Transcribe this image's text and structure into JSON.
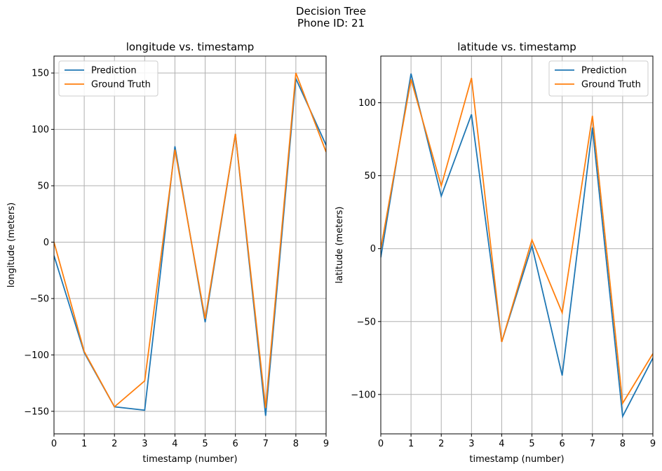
{
  "figure": {
    "title_line1": "Decision Tree",
    "title_line2": "Phone ID: 21"
  },
  "colors": {
    "prediction": "#1f77b4",
    "ground_truth": "#ff7f0e",
    "grid": "#b0b0b0",
    "axis": "#000000"
  },
  "chart_data": [
    {
      "type": "line",
      "title": "longitude vs. timestamp",
      "xlabel": "timestamp (number)",
      "ylabel": "longitude (meters)",
      "xlim": [
        0,
        9
      ],
      "ylim": [
        -170,
        165
      ],
      "xticks": [
        0,
        1,
        2,
        3,
        4,
        5,
        6,
        7,
        8,
        9
      ],
      "yticks": [
        -150,
        -100,
        -50,
        0,
        50,
        100,
        150
      ],
      "grid": true,
      "legend_position": "upper left",
      "x": [
        0,
        1,
        2,
        3,
        4,
        5,
        6,
        7,
        8,
        9
      ],
      "series": [
        {
          "name": "Prediction",
          "color": "#1f77b4",
          "values": [
            -12,
            -98,
            -146,
            -149,
            85,
            -71,
            96,
            -154,
            145,
            86
          ]
        },
        {
          "name": "Ground Truth",
          "color": "#ff7f0e",
          "values": [
            0,
            -97,
            -146,
            -123,
            82,
            -68,
            96,
            -147,
            150,
            80
          ]
        }
      ]
    },
    {
      "type": "line",
      "title": "latitude vs. timestamp",
      "xlabel": "timestamp (number)",
      "ylabel": "latitude (meters)",
      "xlim": [
        0,
        9
      ],
      "ylim": [
        -127,
        132
      ],
      "xticks": [
        0,
        1,
        2,
        3,
        4,
        5,
        6,
        7,
        8,
        9
      ],
      "yticks": [
        -100,
        -50,
        0,
        50,
        100
      ],
      "grid": true,
      "legend_position": "upper right",
      "x": [
        0,
        1,
        2,
        3,
        4,
        5,
        6,
        7,
        8,
        9
      ],
      "series": [
        {
          "name": "Prediction",
          "color": "#1f77b4",
          "values": [
            -6,
            120,
            36,
            92,
            -64,
            2,
            -87,
            83,
            -115,
            -75
          ]
        },
        {
          "name": "Ground Truth",
          "color": "#ff7f0e",
          "values": [
            0,
            116,
            43,
            117,
            -64,
            6,
            -44,
            91,
            -106,
            -72
          ]
        }
      ]
    }
  ]
}
